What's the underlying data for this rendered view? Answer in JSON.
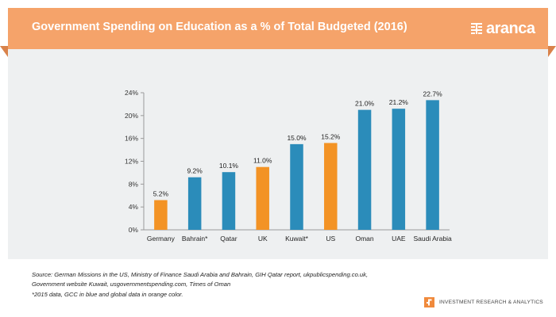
{
  "header": {
    "title": "Government Spending on Education as a % of Total Budgeted (2016)",
    "logo_text": "aranca",
    "logo_icon": "aranca-logo-icon"
  },
  "colors": {
    "banner": "#f5a36a",
    "gcc": "#2b8cba",
    "global": "#f39325",
    "panel": "#eef0f1"
  },
  "chart_data": {
    "type": "bar",
    "title": "",
    "xlabel": "",
    "ylabel": "",
    "categories": [
      "Germany",
      "Bahrain*",
      "Qatar",
      "UK",
      "Kuwait*",
      "US",
      "Oman",
      "UAE",
      "Saudi Arabia"
    ],
    "values": [
      5.2,
      9.2,
      10.1,
      11.0,
      15.0,
      15.2,
      21.0,
      21.2,
      22.7
    ],
    "value_labels": [
      "5.2%",
      "9.2%",
      "10.1%",
      "11.0%",
      "15.0%",
      "15.2%",
      "21.0%",
      "21.2%",
      "22.7%"
    ],
    "groups": [
      "global",
      "gcc",
      "gcc",
      "global",
      "gcc",
      "global",
      "gcc",
      "gcc",
      "gcc"
    ],
    "ylim": [
      0,
      24
    ],
    "yticks": [
      0,
      4,
      8,
      12,
      16,
      20,
      24
    ],
    "ytick_labels": [
      "0%",
      "4%",
      "8%",
      "12%",
      "16%",
      "20%",
      "24%"
    ],
    "grid": false,
    "legend": null
  },
  "footnotes": {
    "source_line1": "Source: German Missions in the US, Ministry of Finance Saudi Arabia and Bahrain, GIH Qatar report, ukpublicspending.co.uk,",
    "source_line2": "Government website Kuwait, usgovernmentspending.com, Times of Oman",
    "note": "*2015 data, GCC in blue and global data in orange color."
  },
  "brand": {
    "tagline": "INVESTMENT RESEARCH & ANALYTICS",
    "icon": "aranca-mark-icon"
  }
}
